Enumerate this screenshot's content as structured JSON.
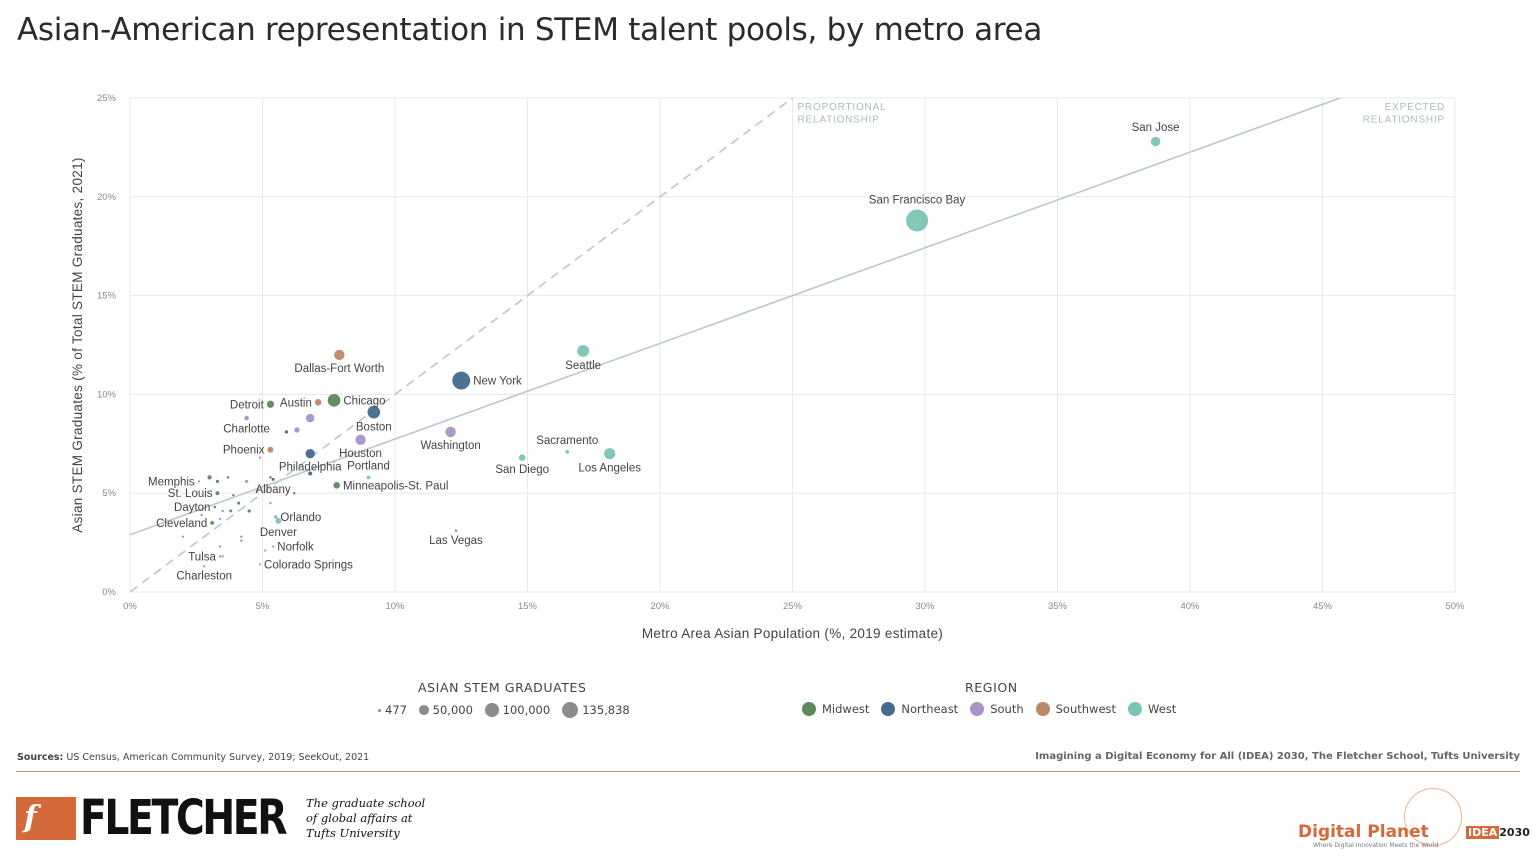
{
  "header": {
    "title": "Asian-American representation in STEM talent pools, by metro area"
  },
  "chart_data": {
    "type": "scatter",
    "xlabel": "Metro Area Asian Population (%, 2019 estimate)",
    "ylabel": "Asian STEM Graduates (% of Total STEM Graduates, 2021)",
    "xlim": [
      0,
      50
    ],
    "ylim": [
      0,
      25
    ],
    "xticks": [
      0,
      5,
      10,
      15,
      20,
      25,
      30,
      35,
      40,
      45,
      50
    ],
    "xtick_labels": [
      "0%",
      "5%",
      "10%",
      "15%",
      "20%",
      "25%",
      "30%",
      "35%",
      "40%",
      "45%",
      "50%"
    ],
    "yticks": [
      0,
      5,
      10,
      15,
      20,
      25
    ],
    "ytick_labels": [
      "0%",
      "5%",
      "10%",
      "15%",
      "20%",
      "25%"
    ],
    "grid": true,
    "reference_lines": [
      {
        "label": "PROPORTIONAL RELATIONSHIP",
        "label_lines": [
          "PROPORTIONAL",
          "RELATIONSHIP"
        ],
        "style": "dashed",
        "x": [
          0,
          25
        ],
        "y": [
          0,
          25
        ]
      },
      {
        "label": "EXPECTED RELATIONSHIP",
        "label_lines": [
          "EXPECTED",
          "RELATIONSHIP"
        ],
        "style": "solid",
        "x": [
          0,
          50
        ],
        "y": [
          2.9,
          27.1
        ]
      }
    ],
    "region_colors": {
      "Midwest": "#5a8a5a",
      "Northeast": "#456a8c",
      "South": "#a894c9",
      "Southwest": "#b98a6a",
      "West": "#7bc4b4"
    },
    "points": [
      {
        "name": "San Jose",
        "x": 38.7,
        "y": 22.8,
        "grads": 25000,
        "region": "West",
        "label_pos": "above"
      },
      {
        "name": "San Francisco Bay",
        "x": 29.7,
        "y": 18.8,
        "grads": 135838,
        "region": "West",
        "label_pos": "above"
      },
      {
        "name": "Seattle",
        "x": 17.1,
        "y": 12.2,
        "grads": 40000,
        "region": "West",
        "label_pos": "below"
      },
      {
        "name": "New York",
        "x": 12.5,
        "y": 10.7,
        "grads": 90000,
        "region": "Northeast",
        "label_pos": "right"
      },
      {
        "name": "Dallas-Fort Worth",
        "x": 7.9,
        "y": 12.0,
        "grads": 30000,
        "region": "Southwest",
        "label_pos": "below"
      },
      {
        "name": "Chicago",
        "x": 7.7,
        "y": 9.7,
        "grads": 45000,
        "region": "Midwest",
        "label_pos": "right"
      },
      {
        "name": "Boston",
        "x": 9.2,
        "y": 9.1,
        "grads": 45000,
        "region": "Northeast",
        "label_pos": "below"
      },
      {
        "name": "Austin",
        "x": 7.1,
        "y": 9.6,
        "grads": 12000,
        "region": "Southwest",
        "label_pos": "left"
      },
      {
        "name": "Detroit",
        "x": 5.3,
        "y": 9.5,
        "grads": 15000,
        "region": "Midwest",
        "label_pos": "left"
      },
      {
        "name": "Charlotte",
        "x": 4.4,
        "y": 8.8,
        "grads": 6000,
        "region": "South",
        "label_pos": "below"
      },
      {
        "name": "Washington",
        "x": 12.1,
        "y": 8.1,
        "grads": 30000,
        "region": "South",
        "label_pos": "below"
      },
      {
        "name": "Houston",
        "x": 8.7,
        "y": 7.7,
        "grads": 30000,
        "region": "South",
        "label_pos": "below"
      },
      {
        "name": "Sacramento",
        "x": 16.5,
        "y": 7.1,
        "grads": 4000,
        "region": "West",
        "label_pos": "above"
      },
      {
        "name": "Los Angeles",
        "x": 18.1,
        "y": 7.0,
        "grads": 35000,
        "region": "West",
        "label_pos": "below"
      },
      {
        "name": "San Diego",
        "x": 14.8,
        "y": 6.8,
        "grads": 12000,
        "region": "West",
        "label_pos": "below"
      },
      {
        "name": "Phoenix",
        "x": 5.3,
        "y": 7.2,
        "grads": 10000,
        "region": "Southwest",
        "label_pos": "left"
      },
      {
        "name": "Philadelphia",
        "x": 6.8,
        "y": 7.0,
        "grads": 25000,
        "region": "Northeast",
        "label_pos": "below"
      },
      {
        "name": "Portland",
        "x": 9.0,
        "y": 5.8,
        "grads": 4000,
        "region": "West",
        "label_pos": "above"
      },
      {
        "name": "Minneapolis-St. Paul",
        "x": 7.8,
        "y": 5.4,
        "grads": 12000,
        "region": "Midwest",
        "label_pos": "right"
      },
      {
        "name": "Memphis",
        "x": 2.6,
        "y": 5.6,
        "grads": 1500,
        "region": "South",
        "label_pos": "left"
      },
      {
        "name": "St. Louis",
        "x": 3.3,
        "y": 5.0,
        "grads": 4000,
        "region": "Midwest",
        "label_pos": "left"
      },
      {
        "name": "Albany",
        "x": 5.4,
        "y": 5.7,
        "grads": 2500,
        "region": "Northeast",
        "label_pos": "below"
      },
      {
        "name": "Dayton",
        "x": 3.2,
        "y": 4.3,
        "grads": 2000,
        "region": "Midwest",
        "label_pos": "left"
      },
      {
        "name": "Orlando",
        "x": 5.5,
        "y": 3.8,
        "grads": 3000,
        "region": "South",
        "label_pos": "right"
      },
      {
        "name": "Cleveland",
        "x": 3.1,
        "y": 3.5,
        "grads": 4000,
        "region": "Midwest",
        "label_pos": "left"
      },
      {
        "name": "Denver",
        "x": 5.6,
        "y": 3.6,
        "grads": 10000,
        "region": "West",
        "label_pos": "below"
      },
      {
        "name": "Las Vegas",
        "x": 12.3,
        "y": 3.1,
        "grads": 2000,
        "region": "Southwest",
        "label_pos": "below"
      },
      {
        "name": "Norfolk",
        "x": 5.4,
        "y": 2.3,
        "grads": 1500,
        "region": "South",
        "label_pos": "right"
      },
      {
        "name": "Tulsa",
        "x": 3.4,
        "y": 1.8,
        "grads": 800,
        "region": "Southwest",
        "label_pos": "left"
      },
      {
        "name": "Colorado Springs",
        "x": 4.9,
        "y": 1.4,
        "grads": 800,
        "region": "West",
        "label_pos": "right"
      },
      {
        "name": "Charleston",
        "x": 2.8,
        "y": 1.3,
        "grads": 700,
        "region": "South",
        "label_pos": "below"
      },
      {
        "name": "",
        "x": 3.0,
        "y": 5.8,
        "grads": 5000,
        "region": "Midwest"
      },
      {
        "name": "",
        "x": 3.7,
        "y": 5.8,
        "grads": 1500,
        "region": "Northeast"
      },
      {
        "name": "",
        "x": 5.3,
        "y": 5.8,
        "grads": 1500,
        "region": "Northeast"
      },
      {
        "name": "",
        "x": 6.2,
        "y": 5.0,
        "grads": 1500,
        "region": "Midwest"
      },
      {
        "name": "",
        "x": 6.8,
        "y": 6.0,
        "grads": 5000,
        "region": "Northeast"
      },
      {
        "name": "",
        "x": 4.8,
        "y": 5.1,
        "grads": 1200,
        "region": "South"
      },
      {
        "name": "",
        "x": 4.1,
        "y": 4.5,
        "grads": 2500,
        "region": "Midwest"
      },
      {
        "name": "",
        "x": 3.8,
        "y": 4.1,
        "grads": 2500,
        "region": "Midwest"
      },
      {
        "name": "",
        "x": 4.5,
        "y": 4.1,
        "grads": 3000,
        "region": "Midwest"
      },
      {
        "name": "",
        "x": 3.5,
        "y": 4.1,
        "grads": 1500,
        "region": "Southwest"
      },
      {
        "name": "",
        "x": 3.9,
        "y": 4.9,
        "grads": 1500,
        "region": "Midwest"
      },
      {
        "name": "",
        "x": 4.4,
        "y": 5.6,
        "grads": 3000,
        "region": "South"
      },
      {
        "name": "",
        "x": 3.3,
        "y": 5.6,
        "grads": 3000,
        "region": "Midwest"
      },
      {
        "name": "",
        "x": 5.3,
        "y": 4.5,
        "grads": 1000,
        "region": "South"
      },
      {
        "name": "",
        "x": 4.2,
        "y": 2.8,
        "grads": 900,
        "region": "Southwest"
      },
      {
        "name": "",
        "x": 4.2,
        "y": 2.6,
        "grads": 900,
        "region": "Southwest"
      },
      {
        "name": "",
        "x": 3.4,
        "y": 2.3,
        "grads": 800,
        "region": "South"
      },
      {
        "name": "",
        "x": 2.0,
        "y": 2.8,
        "grads": 700,
        "region": "South"
      },
      {
        "name": "",
        "x": 3.4,
        "y": 3.7,
        "grads": 1500,
        "region": "South"
      },
      {
        "name": "",
        "x": 2.7,
        "y": 3.9,
        "grads": 800,
        "region": "Southwest"
      },
      {
        "name": "",
        "x": 4.9,
        "y": 6.8,
        "grads": 800,
        "region": "South"
      },
      {
        "name": "",
        "x": 5.9,
        "y": 8.1,
        "grads": 3000,
        "region": "Northeast"
      },
      {
        "name": "",
        "x": 6.3,
        "y": 8.2,
        "grads": 8000,
        "region": "South"
      },
      {
        "name": "",
        "x": 6.8,
        "y": 8.8,
        "grads": 20000,
        "region": "South"
      },
      {
        "name": "",
        "x": 5.1,
        "y": 2.1,
        "grads": 700,
        "region": "West"
      },
      {
        "name": "",
        "x": 3.5,
        "y": 1.8,
        "grads": 700,
        "region": "South"
      }
    ]
  },
  "legend": {
    "size_title": "ASIAN STEM GRADUATES",
    "sizes": [
      {
        "label": "477",
        "value": 477
      },
      {
        "label": "50,000",
        "value": 50000
      },
      {
        "label": "100,000",
        "value": 100000
      },
      {
        "label": "135,838",
        "value": 135838
      }
    ],
    "size_color": "#8c8c8c",
    "region_title": "REGION",
    "regions": [
      {
        "label": "Midwest",
        "color": "#5a8a5a"
      },
      {
        "label": "Northeast",
        "color": "#456a8c"
      },
      {
        "label": "South",
        "color": "#a894c9"
      },
      {
        "label": "Southwest",
        "color": "#b98a6a"
      },
      {
        "label": "West",
        "color": "#7bc4b4"
      }
    ]
  },
  "footer": {
    "sources_label": "Sources:",
    "sources_text": " US Census, American Community Survey, 2019; SeekOut, 2021",
    "credit": "Imagining a Digital Economy for All (IDEA) 2030, The Fletcher School, Tufts University",
    "logo_mark": "f",
    "logo_word": "FLETCHER",
    "tagline": "The graduate school of global affairs at Tufts University",
    "dp_name": "Digital Planet",
    "dp_sub": "Where Digital Innovation Meets the World",
    "idea_mark": "IDEA",
    "idea_year": "2030"
  }
}
